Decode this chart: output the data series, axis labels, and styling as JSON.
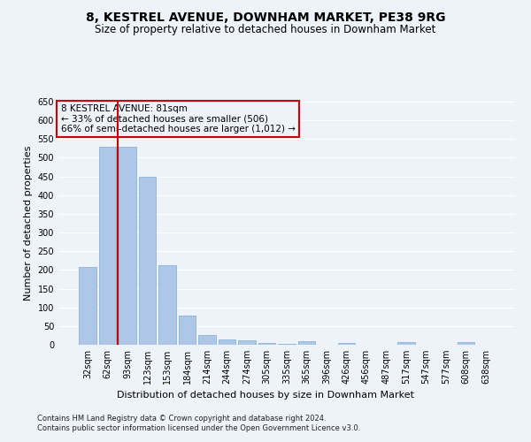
{
  "title": "8, KESTREL AVENUE, DOWNHAM MARKET, PE38 9RG",
  "subtitle": "Size of property relative to detached houses in Downham Market",
  "xlabel": "Distribution of detached houses by size in Downham Market",
  "ylabel": "Number of detached properties",
  "annotation_line1": "8 KESTREL AVENUE: 81sqm",
  "annotation_line2": "← 33% of detached houses are smaller (506)",
  "annotation_line3": "66% of semi-detached houses are larger (1,012) →",
  "footer1": "Contains HM Land Registry data © Crown copyright and database right 2024.",
  "footer2": "Contains public sector information licensed under the Open Government Licence v3.0.",
  "categories": [
    "32sqm",
    "62sqm",
    "93sqm",
    "123sqm",
    "153sqm",
    "184sqm",
    "214sqm",
    "244sqm",
    "274sqm",
    "305sqm",
    "335sqm",
    "365sqm",
    "396sqm",
    "426sqm",
    "456sqm",
    "487sqm",
    "517sqm",
    "547sqm",
    "577sqm",
    "608sqm",
    "638sqm"
  ],
  "values": [
    208,
    530,
    530,
    450,
    212,
    78,
    26,
    15,
    13,
    5,
    3,
    9,
    0,
    5,
    0,
    0,
    6,
    0,
    0,
    6,
    0
  ],
  "bar_color": "#aec6e8",
  "bar_edgecolor": "#7aafd4",
  "vline_x": 1.5,
  "vline_color": "#cc0000",
  "annotation_box_edgecolor": "#cc0000",
  "ylim": [
    0,
    650
  ],
  "yticks": [
    0,
    50,
    100,
    150,
    200,
    250,
    300,
    350,
    400,
    450,
    500,
    550,
    600,
    650
  ],
  "background_color": "#eef2f9",
  "grid_color": "#ffffff",
  "title_fontsize": 10,
  "subtitle_fontsize": 8.5,
  "ylabel_fontsize": 8,
  "xlabel_fontsize": 8,
  "tick_fontsize": 7,
  "footer_fontsize": 6,
  "ann_fontsize": 7.5
}
